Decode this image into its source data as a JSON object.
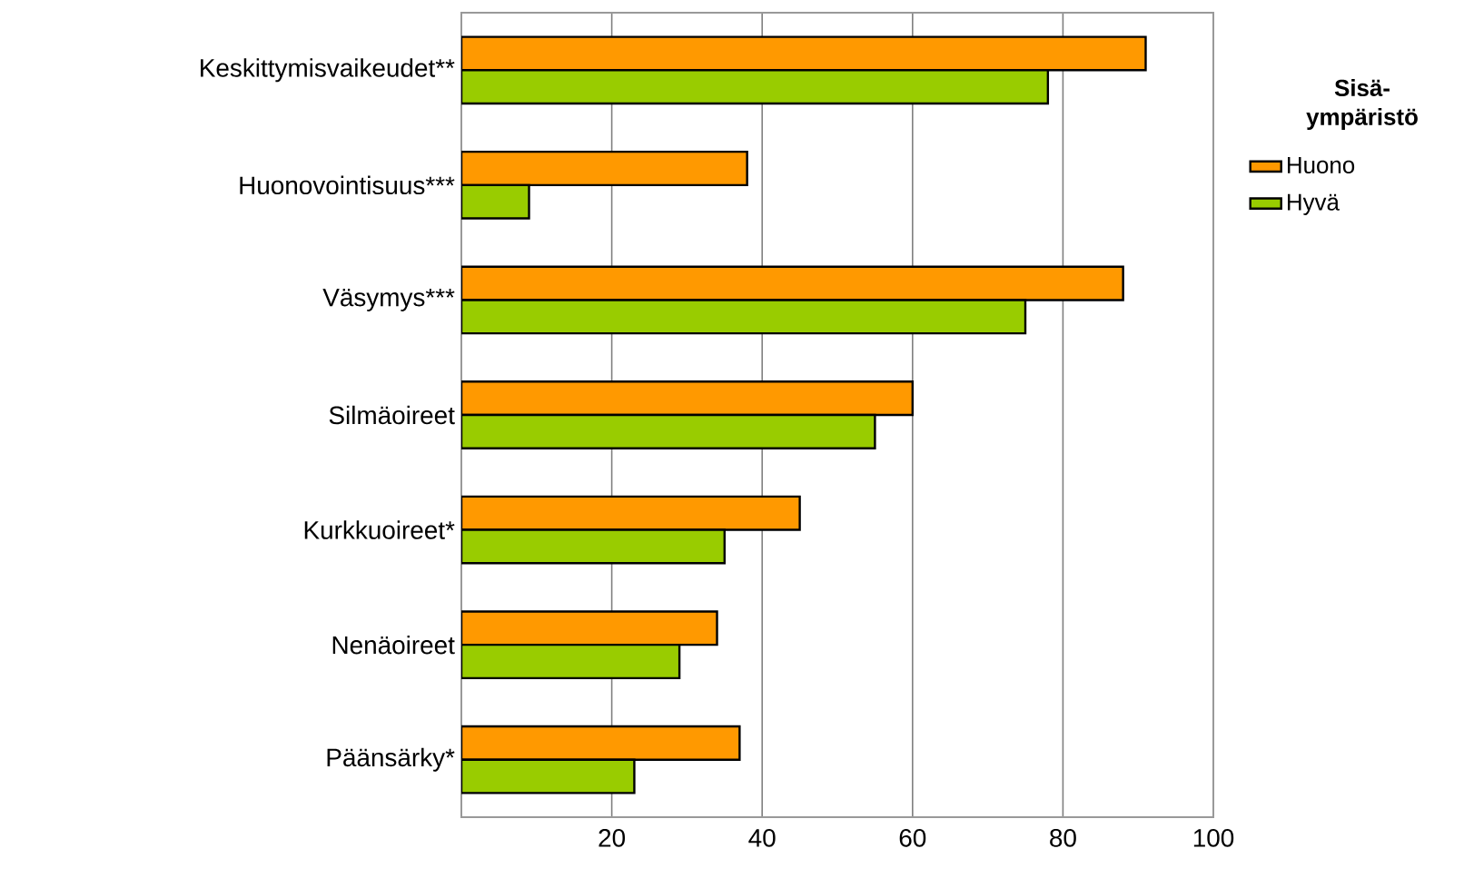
{
  "chart_data": {
    "type": "bar",
    "orientation": "horizontal",
    "legend_title": "Sisä-ympäristö",
    "categories": [
      "Keskittymisvaikeudet**",
      "Huonovointisuus***",
      "Väsymys***",
      "Silmäoireet",
      "Kurkkuoireet*",
      "Nenäoireet",
      "Päänsärky*"
    ],
    "series": [
      {
        "name": "Huono",
        "color": "#ff9900",
        "values": [
          91,
          38,
          88,
          60,
          45,
          34,
          37
        ]
      },
      {
        "name": "Hyvä",
        "color": "#99cc00",
        "values": [
          78,
          9,
          75,
          55,
          35,
          29,
          23
        ]
      }
    ],
    "xlim": [
      0,
      100
    ],
    "xticks": [
      {
        "value": 0,
        "label": null
      },
      20,
      40,
      60,
      80,
      100
    ],
    "grid": "x",
    "legend": "right"
  }
}
